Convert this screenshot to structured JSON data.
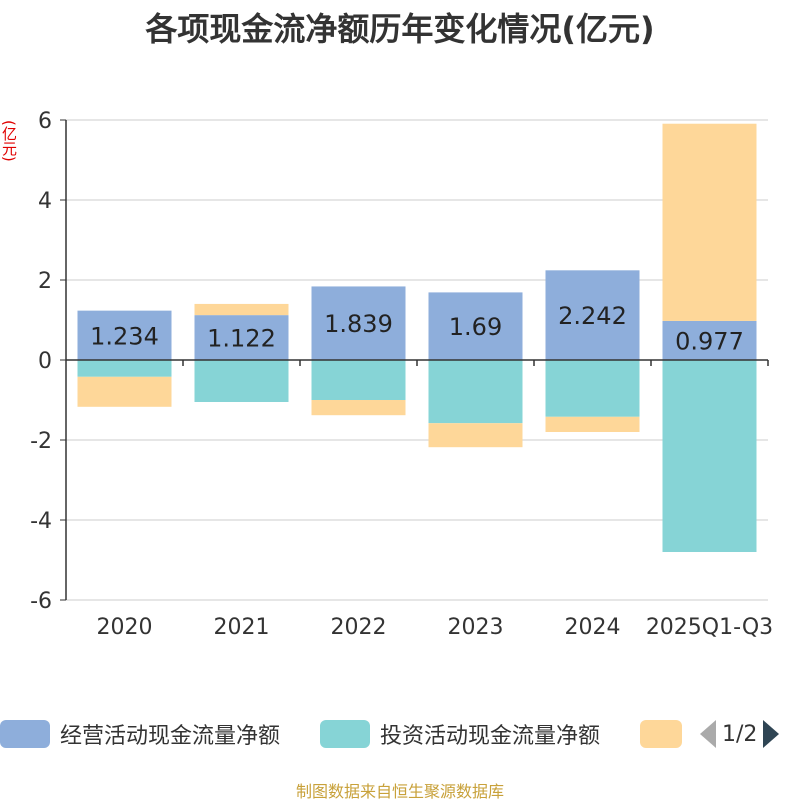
{
  "chart_data": {
    "type": "bar",
    "stacked": true,
    "title": "各项现金流净额历年变化情况(亿元)",
    "ylabel": "(亿元)",
    "xlabel": "",
    "ylim": [
      -6,
      6
    ],
    "yticks": [
      6,
      4,
      2,
      0,
      -2,
      -4,
      -6
    ],
    "categories": [
      "2020",
      "2021",
      "2022",
      "2023",
      "2024",
      "2025Q1-Q3"
    ],
    "series": [
      {
        "name": "经营活动现金流量净额",
        "color": "#8eaedb",
        "values": [
          1.234,
          1.122,
          1.839,
          1.69,
          2.242,
          0.977
        ],
        "labels": [
          "1.234",
          "1.122",
          "1.839",
          "1.69",
          "2.242",
          "0.977"
        ]
      },
      {
        "name": "投资活动现金流量净额",
        "color": "#86d4d6",
        "values": [
          -0.42,
          -1.05,
          -1.0,
          -1.58,
          -1.42,
          -4.8
        ]
      },
      {
        "name": "",
        "color": "#fed799",
        "values": [
          -0.75,
          0.28,
          -0.38,
          -0.6,
          -0.38,
          4.93
        ]
      }
    ],
    "legend": {
      "position": "bottom",
      "page": "1/2"
    }
  },
  "source": "制图数据来自恒生聚源数据库"
}
